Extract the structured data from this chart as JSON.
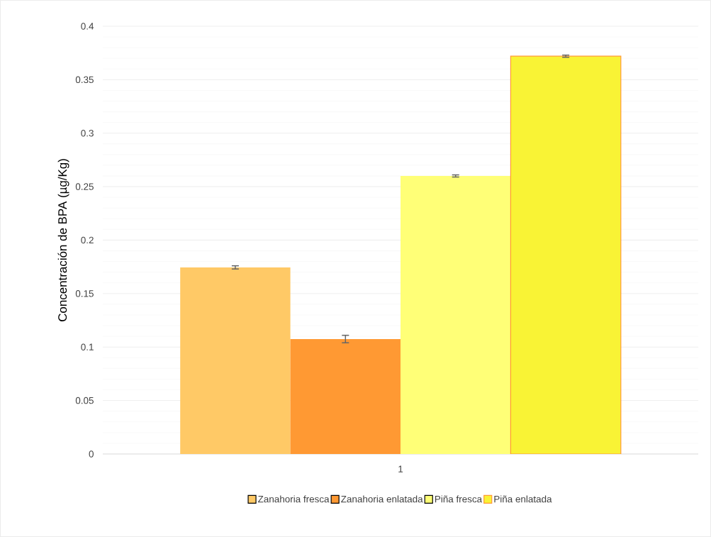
{
  "chart_data": {
    "type": "bar",
    "ylabel": "Concentración de BPA (µg/Kg)",
    "categories": [
      "1"
    ],
    "series": [
      {
        "name": "Zanahoria fresca",
        "color": "#ffc966",
        "values": [
          0.1745
        ],
        "errors": [
          0.0015
        ]
      },
      {
        "name": "Zanahoria enlatada",
        "color": "#ff9933",
        "values": [
          0.1075
        ],
        "errors": [
          0.0035
        ]
      },
      {
        "name": "Piña fresca",
        "color": "#ffff77",
        "values": [
          0.26
        ],
        "errors": [
          0.001
        ]
      },
      {
        "name": "Piña enlatada",
        "color": "#f9f335",
        "values": [
          0.372
        ],
        "errors": [
          0.001
        ]
      }
    ],
    "ylim": [
      0,
      0.4
    ],
    "yticks": [
      0,
      0.05,
      0.1,
      0.15,
      0.2,
      0.25,
      0.3,
      0.35,
      0.4
    ],
    "grid": "y",
    "legend": "bottom"
  }
}
